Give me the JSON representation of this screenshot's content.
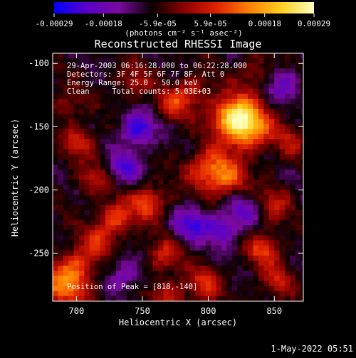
{
  "chart_data": {
    "type": "heatmap",
    "title": "Reconstructed RHESSI Image",
    "xlabel": "Heliocentric X (arcsec)",
    "ylabel": "Heliocentric Y (arcsec)",
    "x_range": [
      682,
      872
    ],
    "y_range": [
      -288,
      -92
    ],
    "x_ticks": [
      700,
      750,
      800,
      850
    ],
    "y_ticks": [
      -100,
      -150,
      -200,
      -250
    ],
    "colorbar": {
      "min": -0.00029,
      "max": 0.00029,
      "tick_values": [
        -0.00029,
        -0.00018,
        -5.9e-05,
        5.9e-05,
        0.00018,
        0.00029
      ],
      "tick_labels": [
        "-0.00029",
        "-0.00018",
        "-5.9e-05",
        "5.9e-05",
        "0.00018",
        "0.00029"
      ],
      "unit_label": "(photons cm⁻² s⁻¹ asec⁻²)",
      "colors": [
        "#0000ff",
        "#5a00c8",
        "#7a0aa0",
        "#0a0000",
        "#8a0000",
        "#e02000",
        "#ff8000",
        "#ffd020",
        "#ffffc0"
      ]
    },
    "annotations": [
      "29-Apr-2003 06:16:28.000 to 06:22:28.000",
      "Detectors: 3F 4F 5F 6F 7F 8F, Att 0",
      "Energy Range: 25.0 - 50.0 keV",
      "Clean     Total counts: 5.03E+03"
    ],
    "peak_label": "Position of Peak = [818,-140]",
    "peak_position": [
      818,
      -140
    ],
    "sources": [
      {
        "x": 818,
        "y": -140,
        "value": 0.00029
      },
      {
        "x": 830,
        "y": -150,
        "value": 0.0002
      },
      {
        "x": 800,
        "y": -182,
        "value": 0.0002
      },
      {
        "x": 815,
        "y": -190,
        "value": 0.00012
      },
      {
        "x": 752,
        "y": -208,
        "value": 0.00018
      },
      {
        "x": 772,
        "y": -130,
        "value": 0.00013
      },
      {
        "x": 786,
        "y": -120,
        "value": 0.0001
      },
      {
        "x": 728,
        "y": -220,
        "value": 0.00016
      },
      {
        "x": 715,
        "y": -238,
        "value": 0.00012
      },
      {
        "x": 700,
        "y": -255,
        "value": 0.0001
      },
      {
        "x": 690,
        "y": -272,
        "value": 0.00022
      },
      {
        "x": 765,
        "y": -250,
        "value": 0.00013
      },
      {
        "x": 795,
        "y": -272,
        "value": 0.00014
      },
      {
        "x": 768,
        "y": -282,
        "value": 0.00011
      },
      {
        "x": 840,
        "y": -245,
        "value": 0.00015
      },
      {
        "x": 850,
        "y": -270,
        "value": 0.00011
      },
      {
        "x": 848,
        "y": -210,
        "value": 0.00011
      },
      {
        "x": 860,
        "y": -160,
        "value": 9e-05
      },
      {
        "x": 700,
        "y": -160,
        "value": 0.00012
      },
      {
        "x": 712,
        "y": -190,
        "value": 0.0001
      },
      {
        "x": 690,
        "y": -130,
        "value": 8e-05
      },
      {
        "x": 742,
        "y": -112,
        "value": 9e-05
      },
      {
        "x": 833,
        "y": -105,
        "value": 8e-05
      }
    ],
    "negative_regions": [
      {
        "x": 745,
        "y": -150,
        "value": -0.00018
      },
      {
        "x": 735,
        "y": -180,
        "value": -0.00014
      },
      {
        "x": 785,
        "y": -225,
        "value": -0.00016
      },
      {
        "x": 808,
        "y": -230,
        "value": -0.00014
      },
      {
        "x": 855,
        "y": -115,
        "value": -0.00011
      },
      {
        "x": 735,
        "y": -265,
        "value": -0.0001
      },
      {
        "x": 825,
        "y": -215,
        "value": -0.0001
      }
    ]
  },
  "timestamp": "1-May-2022 05:51"
}
